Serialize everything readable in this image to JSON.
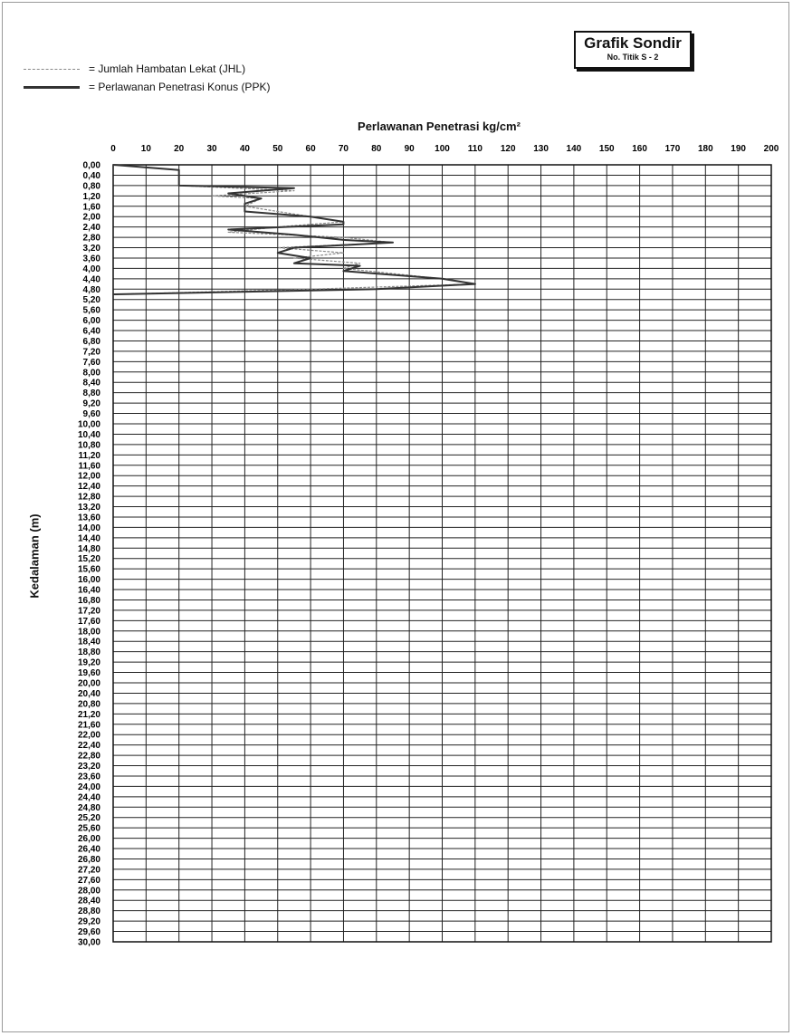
{
  "header": {
    "title": "Grafik Sondir",
    "subtitle": "No. Titik S - 2"
  },
  "legend": [
    {
      "key": "jhl",
      "label": "= Jumlah Hambatan Lekat (JHL)",
      "color": "#8a8a8a"
    },
    {
      "key": "ppk",
      "label": "= Perlawanan Penetrasi Konus (PPK)",
      "color": "#333333"
    }
  ],
  "chart_data": {
    "type": "line",
    "title": "Perlawanan Penetrasi kg/cm²",
    "xlabel": "",
    "ylabel": "Kedalaman (m)",
    "x_axis_position": "top",
    "y_axis_inverted": true,
    "xlim": [
      0,
      200
    ],
    "ylim": [
      0,
      30
    ],
    "x_ticks": [
      "0",
      "10",
      "20",
      "30",
      "40",
      "50",
      "60",
      "70",
      "80",
      "90",
      "100",
      "110",
      "120",
      "130",
      "140",
      "150",
      "160",
      "170",
      "180",
      "190",
      "200"
    ],
    "y_ticks": [
      "0,00",
      "0,40",
      "0,80",
      "1,20",
      "1,60",
      "2,00",
      "2,40",
      "2,80",
      "3,20",
      "3,60",
      "4,00",
      "4,40",
      "4,80",
      "5,20",
      "5,60",
      "6,00",
      "6,40",
      "6,80",
      "7,20",
      "7,60",
      "8,00",
      "8,40",
      "8,80",
      "9,20",
      "9,60",
      "10,00",
      "10,40",
      "10,80",
      "11,20",
      "11,60",
      "12,00",
      "12,40",
      "12,80",
      "13,20",
      "13,60",
      "14,00",
      "14,40",
      "14,80",
      "15,20",
      "15,60",
      "16,00",
      "16,40",
      "16,80",
      "17,20",
      "17,60",
      "18,00",
      "18,40",
      "18,80",
      "19,20",
      "19,60",
      "20,00",
      "20,40",
      "20,80",
      "21,20",
      "21,60",
      "22,00",
      "22,40",
      "22,80",
      "23,20",
      "23,60",
      "24,00",
      "24,40",
      "24,80",
      "25,20",
      "25,60",
      "26,00",
      "26,40",
      "26,80",
      "27,20",
      "27,60",
      "28,00",
      "28,40",
      "28,80",
      "29,20",
      "29,60",
      "30,00"
    ],
    "grid": true,
    "series": [
      {
        "name": "Jumlah Hambatan Lekat (JHL)",
        "color": "#8a8a8a",
        "points": [
          [
            0,
            0
          ],
          [
            20,
            0.2
          ],
          [
            20,
            0.4
          ],
          [
            20,
            0.8
          ],
          [
            55,
            1.0
          ],
          [
            30,
            1.2
          ],
          [
            45,
            1.3
          ],
          [
            40,
            1.6
          ],
          [
            60,
            2.0
          ],
          [
            70,
            2.2
          ],
          [
            50,
            2.4
          ],
          [
            35,
            2.6
          ],
          [
            70,
            2.8
          ],
          [
            85,
            3.0
          ],
          [
            50,
            3.2
          ],
          [
            70,
            3.4
          ],
          [
            55,
            3.6
          ],
          [
            75,
            3.8
          ],
          [
            70,
            4.0
          ],
          [
            85,
            4.2
          ],
          [
            100,
            4.4
          ],
          [
            110,
            4.6
          ],
          [
            60,
            4.8
          ],
          [
            0,
            5.0
          ]
        ]
      },
      {
        "name": "Perlawanan Penetrasi Konus (PPK)",
        "color": "#333333",
        "points": [
          [
            0,
            0
          ],
          [
            20,
            0.2
          ],
          [
            20,
            0.6
          ],
          [
            20,
            0.8
          ],
          [
            55,
            0.9
          ],
          [
            35,
            1.1
          ],
          [
            45,
            1.3
          ],
          [
            40,
            1.5
          ],
          [
            40,
            1.8
          ],
          [
            60,
            2.0
          ],
          [
            70,
            2.2
          ],
          [
            70,
            2.3
          ],
          [
            35,
            2.5
          ],
          [
            55,
            2.7
          ],
          [
            70,
            2.9
          ],
          [
            85,
            3.0
          ],
          [
            55,
            3.2
          ],
          [
            50,
            3.4
          ],
          [
            60,
            3.6
          ],
          [
            55,
            3.8
          ],
          [
            75,
            3.9
          ],
          [
            70,
            4.1
          ],
          [
            80,
            4.2
          ],
          [
            100,
            4.4
          ],
          [
            110,
            4.6
          ],
          [
            80,
            4.8
          ],
          [
            0,
            5.0
          ]
        ]
      }
    ]
  }
}
